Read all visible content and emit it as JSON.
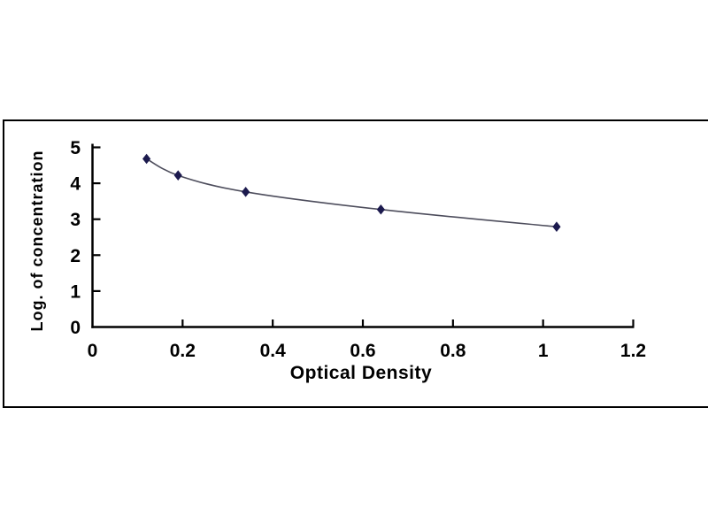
{
  "figure": {
    "background": "#ffffff",
    "border_color": "#000000"
  },
  "chart_data": {
    "type": "scatter",
    "title": "",
    "xlabel": "Optical Density",
    "ylabel": "Log. of concentration",
    "series": [
      {
        "name": "standard-curve",
        "marker": "diamond",
        "marker_color": "#1c1a4e",
        "line_color": "#4d4d5c",
        "points": [
          {
            "x": 0.12,
            "y": 4.68
          },
          {
            "x": 0.19,
            "y": 4.22
          },
          {
            "x": 0.34,
            "y": 3.76
          },
          {
            "x": 0.64,
            "y": 3.27
          },
          {
            "x": 1.03,
            "y": 2.79
          }
        ]
      }
    ],
    "xlim": [
      0,
      1.2
    ],
    "ylim": [
      0,
      5
    ],
    "x_ticks": [
      "0",
      "0.2",
      "0.4",
      "0.6",
      "0.8",
      "1",
      "1.2"
    ],
    "y_ticks": [
      "0",
      "1",
      "2",
      "3",
      "4",
      "5"
    ],
    "grid": false,
    "legend_position": "none",
    "axis_color": "#000000",
    "text_color": "#000000"
  }
}
